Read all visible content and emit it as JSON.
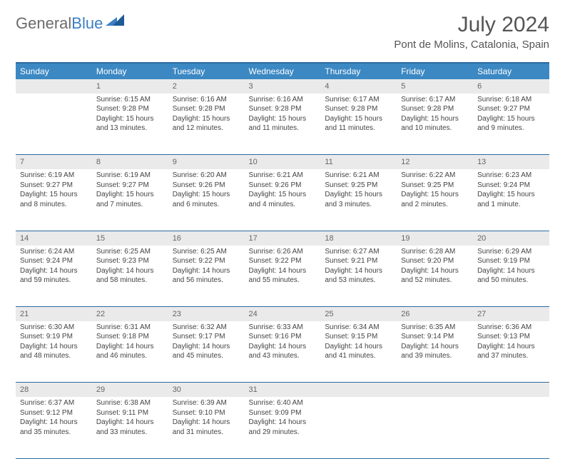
{
  "brand": {
    "name1": "General",
    "name2": "Blue"
  },
  "title": "July 2024",
  "location": "Pont de Molins, Catalonia, Spain",
  "headers": [
    "Sunday",
    "Monday",
    "Tuesday",
    "Wednesday",
    "Thursday",
    "Friday",
    "Saturday"
  ],
  "colors": {
    "header_bg": "#3b88c3",
    "header_border": "#2d6a9e",
    "daynum_bg": "#eaeaea",
    "text": "#444444",
    "title": "#555555",
    "brand_gray": "#6b6b6b",
    "brand_blue": "#3b7fc4"
  },
  "weeks": [
    [
      null,
      {
        "n": "1",
        "sunrise": "Sunrise: 6:15 AM",
        "sunset": "Sunset: 9:28 PM",
        "daylight": "Daylight: 15 hours and 13 minutes."
      },
      {
        "n": "2",
        "sunrise": "Sunrise: 6:16 AM",
        "sunset": "Sunset: 9:28 PM",
        "daylight": "Daylight: 15 hours and 12 minutes."
      },
      {
        "n": "3",
        "sunrise": "Sunrise: 6:16 AM",
        "sunset": "Sunset: 9:28 PM",
        "daylight": "Daylight: 15 hours and 11 minutes."
      },
      {
        "n": "4",
        "sunrise": "Sunrise: 6:17 AM",
        "sunset": "Sunset: 9:28 PM",
        "daylight": "Daylight: 15 hours and 11 minutes."
      },
      {
        "n": "5",
        "sunrise": "Sunrise: 6:17 AM",
        "sunset": "Sunset: 9:28 PM",
        "daylight": "Daylight: 15 hours and 10 minutes."
      },
      {
        "n": "6",
        "sunrise": "Sunrise: 6:18 AM",
        "sunset": "Sunset: 9:27 PM",
        "daylight": "Daylight: 15 hours and 9 minutes."
      }
    ],
    [
      {
        "n": "7",
        "sunrise": "Sunrise: 6:19 AM",
        "sunset": "Sunset: 9:27 PM",
        "daylight": "Daylight: 15 hours and 8 minutes."
      },
      {
        "n": "8",
        "sunrise": "Sunrise: 6:19 AM",
        "sunset": "Sunset: 9:27 PM",
        "daylight": "Daylight: 15 hours and 7 minutes."
      },
      {
        "n": "9",
        "sunrise": "Sunrise: 6:20 AM",
        "sunset": "Sunset: 9:26 PM",
        "daylight": "Daylight: 15 hours and 6 minutes."
      },
      {
        "n": "10",
        "sunrise": "Sunrise: 6:21 AM",
        "sunset": "Sunset: 9:26 PM",
        "daylight": "Daylight: 15 hours and 4 minutes."
      },
      {
        "n": "11",
        "sunrise": "Sunrise: 6:21 AM",
        "sunset": "Sunset: 9:25 PM",
        "daylight": "Daylight: 15 hours and 3 minutes."
      },
      {
        "n": "12",
        "sunrise": "Sunrise: 6:22 AM",
        "sunset": "Sunset: 9:25 PM",
        "daylight": "Daylight: 15 hours and 2 minutes."
      },
      {
        "n": "13",
        "sunrise": "Sunrise: 6:23 AM",
        "sunset": "Sunset: 9:24 PM",
        "daylight": "Daylight: 15 hours and 1 minute."
      }
    ],
    [
      {
        "n": "14",
        "sunrise": "Sunrise: 6:24 AM",
        "sunset": "Sunset: 9:24 PM",
        "daylight": "Daylight: 14 hours and 59 minutes."
      },
      {
        "n": "15",
        "sunrise": "Sunrise: 6:25 AM",
        "sunset": "Sunset: 9:23 PM",
        "daylight": "Daylight: 14 hours and 58 minutes."
      },
      {
        "n": "16",
        "sunrise": "Sunrise: 6:25 AM",
        "sunset": "Sunset: 9:22 PM",
        "daylight": "Daylight: 14 hours and 56 minutes."
      },
      {
        "n": "17",
        "sunrise": "Sunrise: 6:26 AM",
        "sunset": "Sunset: 9:22 PM",
        "daylight": "Daylight: 14 hours and 55 minutes."
      },
      {
        "n": "18",
        "sunrise": "Sunrise: 6:27 AM",
        "sunset": "Sunset: 9:21 PM",
        "daylight": "Daylight: 14 hours and 53 minutes."
      },
      {
        "n": "19",
        "sunrise": "Sunrise: 6:28 AM",
        "sunset": "Sunset: 9:20 PM",
        "daylight": "Daylight: 14 hours and 52 minutes."
      },
      {
        "n": "20",
        "sunrise": "Sunrise: 6:29 AM",
        "sunset": "Sunset: 9:19 PM",
        "daylight": "Daylight: 14 hours and 50 minutes."
      }
    ],
    [
      {
        "n": "21",
        "sunrise": "Sunrise: 6:30 AM",
        "sunset": "Sunset: 9:19 PM",
        "daylight": "Daylight: 14 hours and 48 minutes."
      },
      {
        "n": "22",
        "sunrise": "Sunrise: 6:31 AM",
        "sunset": "Sunset: 9:18 PM",
        "daylight": "Daylight: 14 hours and 46 minutes."
      },
      {
        "n": "23",
        "sunrise": "Sunrise: 6:32 AM",
        "sunset": "Sunset: 9:17 PM",
        "daylight": "Daylight: 14 hours and 45 minutes."
      },
      {
        "n": "24",
        "sunrise": "Sunrise: 6:33 AM",
        "sunset": "Sunset: 9:16 PM",
        "daylight": "Daylight: 14 hours and 43 minutes."
      },
      {
        "n": "25",
        "sunrise": "Sunrise: 6:34 AM",
        "sunset": "Sunset: 9:15 PM",
        "daylight": "Daylight: 14 hours and 41 minutes."
      },
      {
        "n": "26",
        "sunrise": "Sunrise: 6:35 AM",
        "sunset": "Sunset: 9:14 PM",
        "daylight": "Daylight: 14 hours and 39 minutes."
      },
      {
        "n": "27",
        "sunrise": "Sunrise: 6:36 AM",
        "sunset": "Sunset: 9:13 PM",
        "daylight": "Daylight: 14 hours and 37 minutes."
      }
    ],
    [
      {
        "n": "28",
        "sunrise": "Sunrise: 6:37 AM",
        "sunset": "Sunset: 9:12 PM",
        "daylight": "Daylight: 14 hours and 35 minutes."
      },
      {
        "n": "29",
        "sunrise": "Sunrise: 6:38 AM",
        "sunset": "Sunset: 9:11 PM",
        "daylight": "Daylight: 14 hours and 33 minutes."
      },
      {
        "n": "30",
        "sunrise": "Sunrise: 6:39 AM",
        "sunset": "Sunset: 9:10 PM",
        "daylight": "Daylight: 14 hours and 31 minutes."
      },
      {
        "n": "31",
        "sunrise": "Sunrise: 6:40 AM",
        "sunset": "Sunset: 9:09 PM",
        "daylight": "Daylight: 14 hours and 29 minutes."
      },
      null,
      null,
      null
    ]
  ]
}
